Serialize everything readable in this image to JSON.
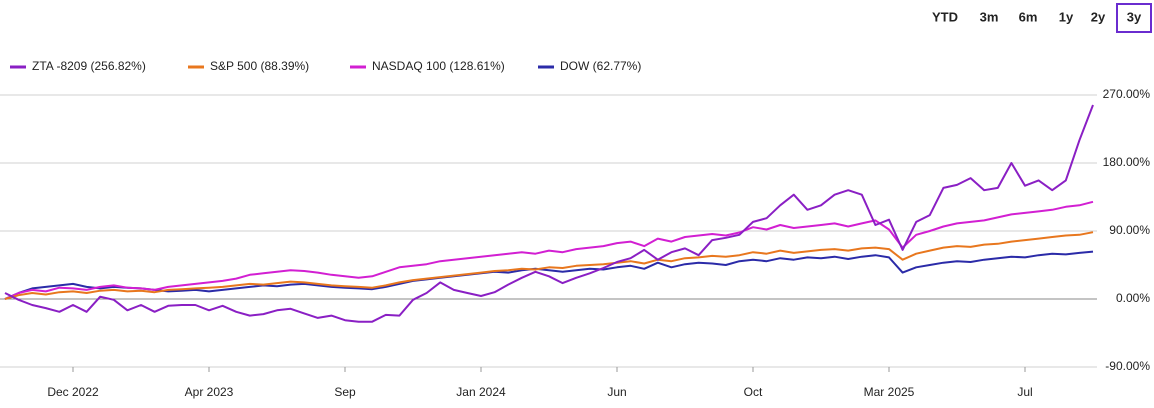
{
  "controls": {
    "ranges": [
      "YTD",
      "3m",
      "6m",
      "1y",
      "2y",
      "3y"
    ],
    "selected": 5
  },
  "chart_data": {
    "type": "line",
    "categories": [
      null,
      null,
      null,
      null,
      null,
      "Dec 2022",
      null,
      null,
      null,
      null,
      null,
      null,
      null,
      null,
      null,
      "Apr 2023",
      null,
      null,
      null,
      null,
      null,
      null,
      null,
      null,
      null,
      "Sep",
      null,
      null,
      null,
      null,
      null,
      null,
      null,
      null,
      null,
      "Jan 2024",
      null,
      null,
      null,
      null,
      null,
      null,
      null,
      null,
      null,
      "Jun",
      null,
      null,
      null,
      null,
      null,
      null,
      null,
      null,
      null,
      "Oct",
      null,
      null,
      null,
      null,
      null,
      null,
      null,
      null,
      null,
      "Mar 2025",
      null,
      null,
      null,
      null,
      null,
      null,
      null,
      null,
      null,
      "Jul",
      null,
      null,
      null,
      null,
      null
    ],
    "series": [
      {
        "name": "ZTA -8209 (256.82%)",
        "color": "#8a1fc4",
        "values": [
          8,
          -1,
          -8,
          -12,
          -17,
          -8,
          -17,
          3,
          -1,
          -15,
          -8,
          -17,
          -9,
          -8,
          -8,
          -15,
          -9,
          -17,
          -22,
          -20,
          -15,
          -13,
          -19,
          -25,
          -22,
          -28,
          -30,
          -30,
          -21,
          -22,
          -1,
          8,
          22,
          12,
          8,
          4,
          9,
          19,
          28,
          36,
          30,
          21,
          28,
          34,
          41,
          49,
          54,
          65,
          52,
          62,
          67,
          58,
          78,
          81,
          85,
          102,
          107,
          124,
          138,
          118,
          124,
          138,
          144,
          138,
          98,
          105,
          65,
          102,
          111,
          147,
          151,
          160,
          144,
          147,
          180,
          150,
          157,
          144,
          157,
          210,
          256.82
        ]
      },
      {
        "name": "S&P 500 (88.39%)",
        "color": "#e8771e",
        "values": [
          0,
          5,
          8,
          6,
          9,
          10,
          8,
          11,
          12,
          10,
          11,
          9,
          12,
          13,
          14,
          15,
          16,
          18,
          20,
          19,
          21,
          23,
          22,
          20,
          18,
          17,
          16,
          15,
          18,
          22,
          25,
          27,
          29,
          31,
          33,
          35,
          37,
          38,
          40,
          39,
          42,
          41,
          44,
          45,
          46,
          48,
          50,
          47,
          52,
          50,
          54,
          55,
          57,
          56,
          58,
          62,
          60,
          64,
          61,
          63,
          65,
          66,
          64,
          67,
          68,
          66,
          52,
          60,
          64,
          68,
          70,
          69,
          72,
          73,
          76,
          78,
          80,
          82,
          84,
          85,
          88.39
        ]
      },
      {
        "name": "NASDAQ 100 (128.61%)",
        "color": "#d21fd2",
        "values": [
          0,
          8,
          12,
          10,
          15,
          14,
          12,
          16,
          18,
          15,
          14,
          12,
          16,
          18,
          20,
          22,
          24,
          27,
          32,
          34,
          36,
          38,
          37,
          35,
          32,
          30,
          28,
          30,
          36,
          42,
          44,
          46,
          50,
          52,
          54,
          56,
          58,
          60,
          62,
          60,
          64,
          62,
          66,
          68,
          70,
          74,
          76,
          70,
          80,
          76,
          82,
          84,
          86,
          84,
          88,
          95,
          92,
          98,
          94,
          96,
          98,
          100,
          96,
          100,
          104,
          92,
          68,
          85,
          90,
          96,
          100,
          102,
          104,
          108,
          112,
          114,
          116,
          118,
          122,
          124,
          128.61
        ]
      },
      {
        "name": "DOW (62.77%)",
        "color": "#2b2ba8",
        "values": [
          0,
          8,
          14,
          16,
          18,
          20,
          16,
          14,
          16,
          15,
          14,
          12,
          10,
          11,
          12,
          10,
          12,
          14,
          16,
          18,
          17,
          19,
          20,
          18,
          16,
          15,
          14,
          13,
          16,
          20,
          24,
          26,
          28,
          30,
          32,
          34,
          36,
          35,
          38,
          40,
          38,
          36,
          38,
          40,
          39,
          42,
          44,
          40,
          48,
          42,
          46,
          48,
          47,
          45,
          50,
          52,
          50,
          54,
          52,
          55,
          54,
          56,
          53,
          56,
          58,
          55,
          35,
          42,
          45,
          48,
          50,
          49,
          52,
          54,
          56,
          55,
          58,
          60,
          59,
          61,
          62.77
        ]
      }
    ],
    "ylim": [
      -90,
      270
    ],
    "yticks": [
      {
        "value": -90,
        "label": "-90.00%"
      },
      {
        "value": 0,
        "label": "0.00%"
      },
      {
        "value": 90,
        "label": "90.00%"
      },
      {
        "value": 180,
        "label": "180.00%"
      },
      {
        "value": 270,
        "label": "270.00%"
      }
    ],
    "grid": true
  }
}
